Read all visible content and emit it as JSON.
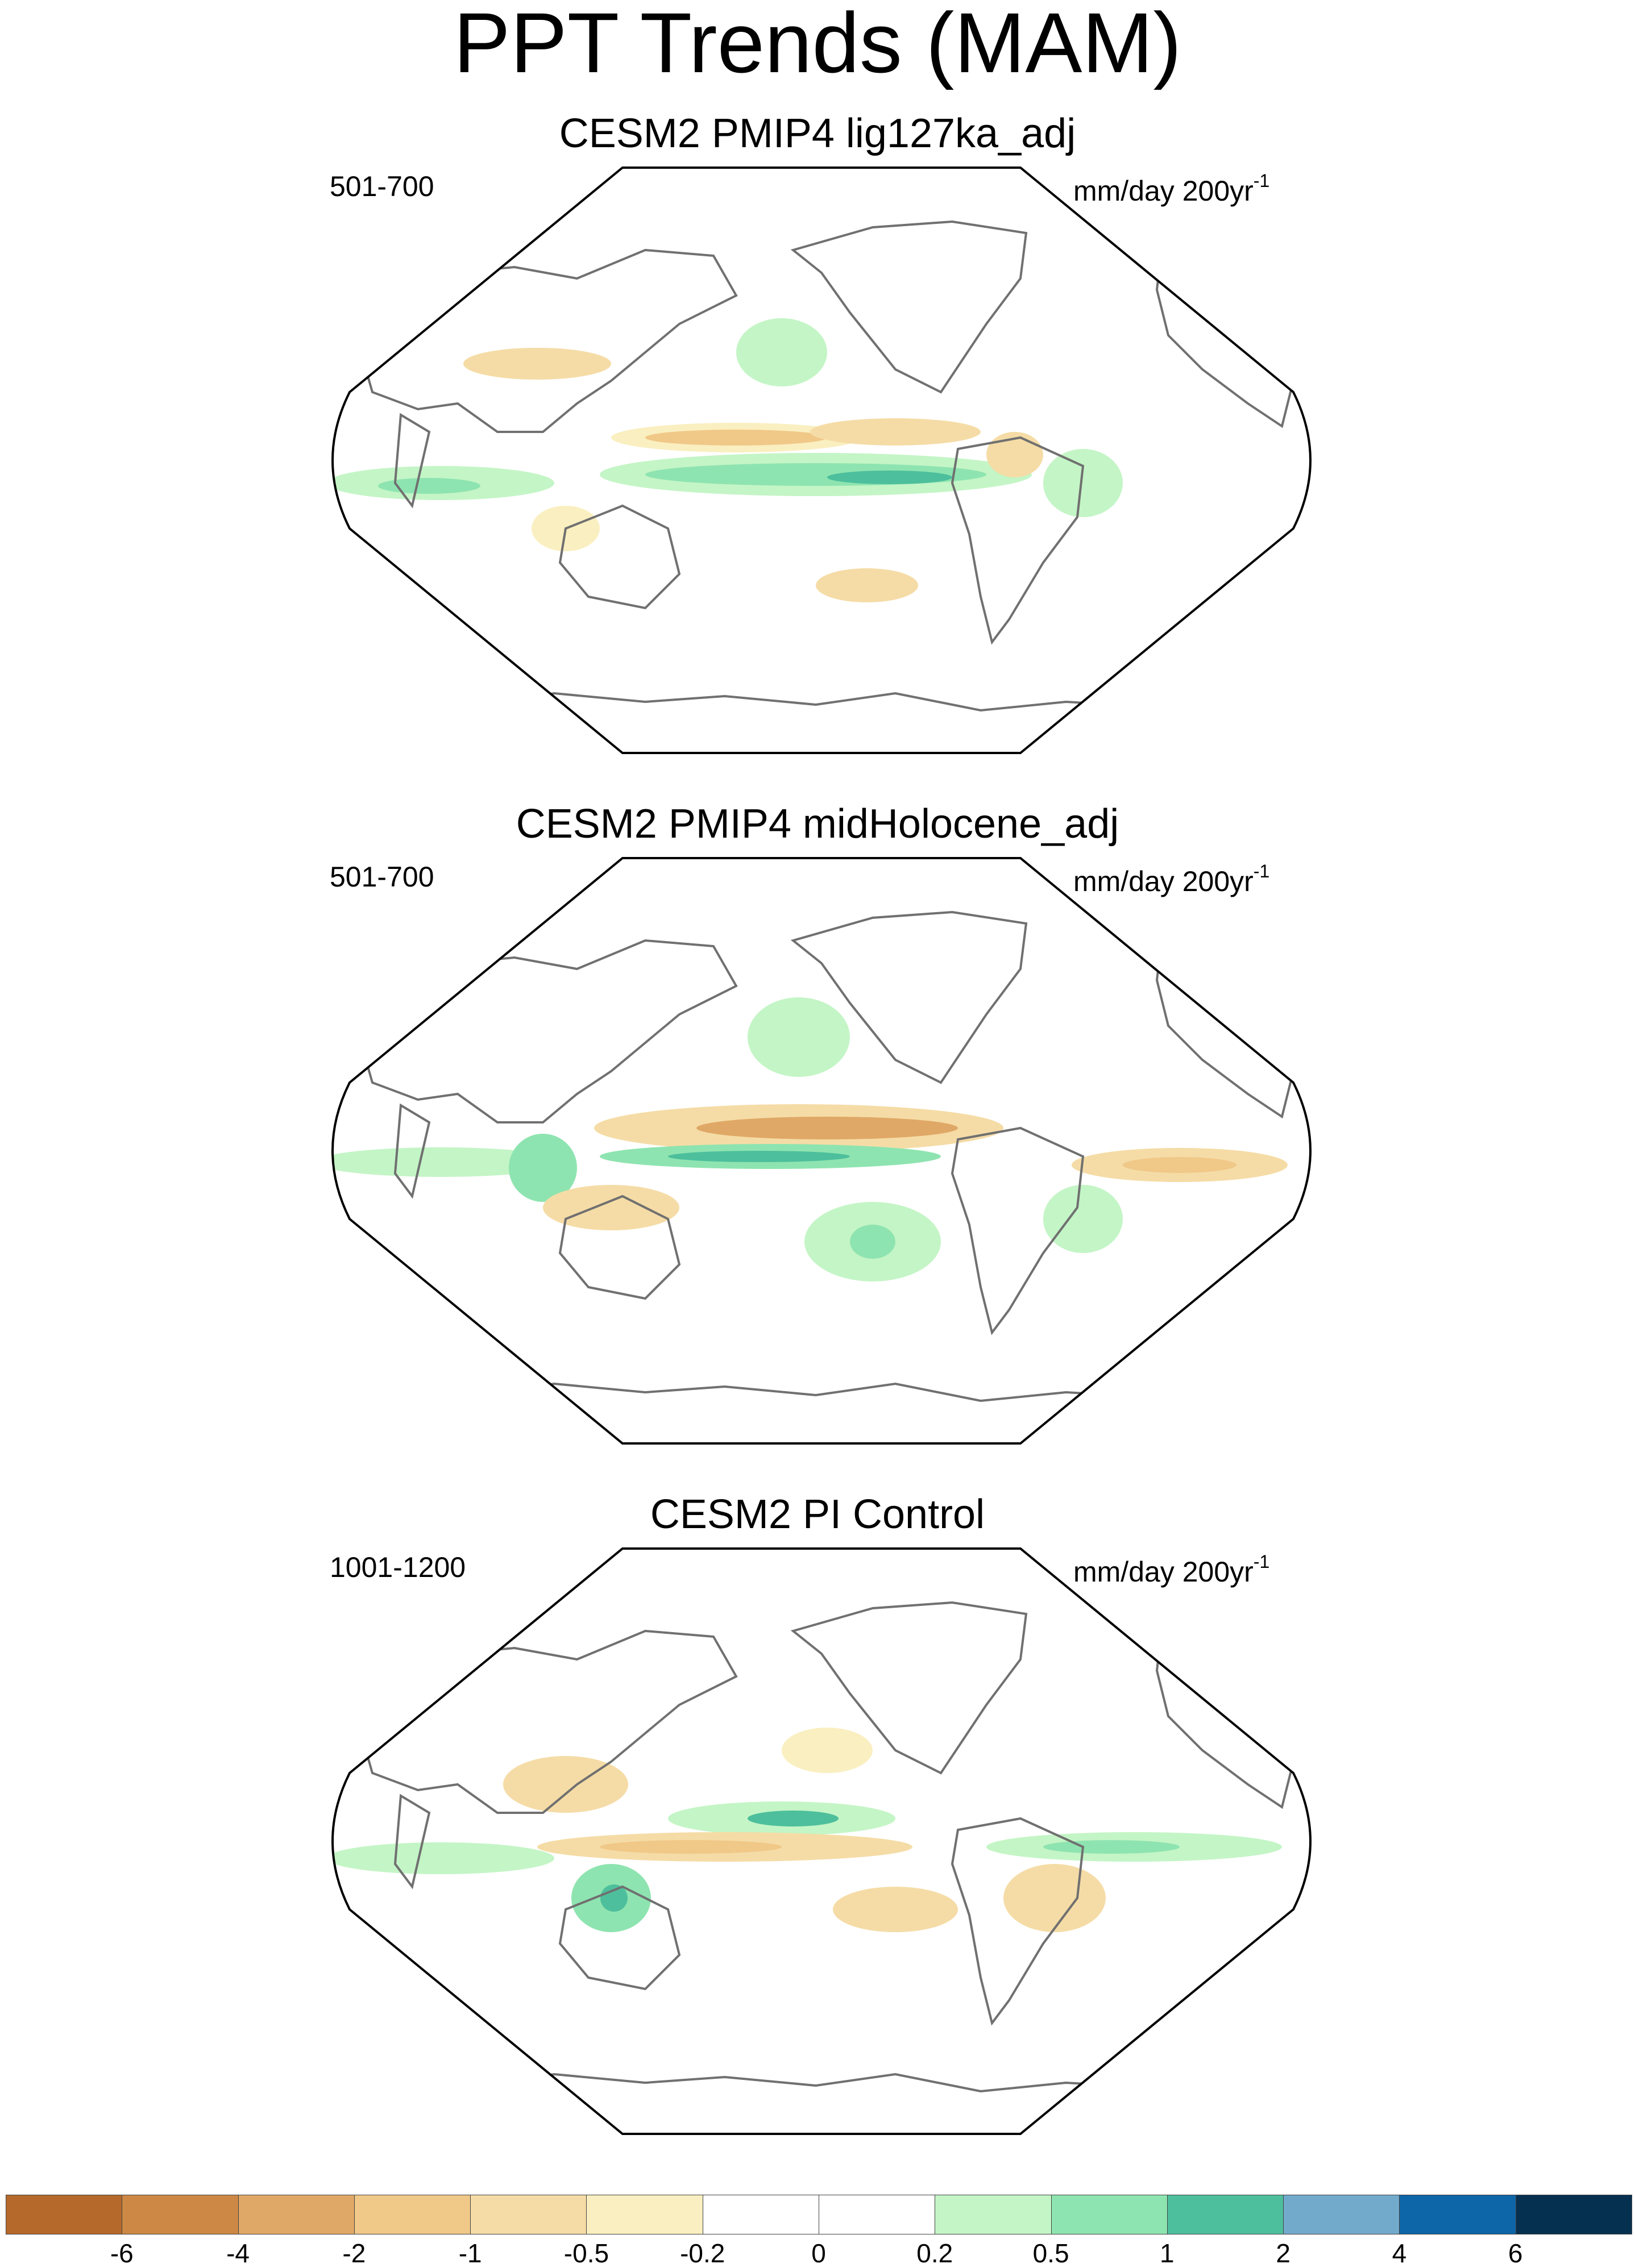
{
  "title": "PPT Trends (MAM)",
  "panels": [
    {
      "title": "CESM2 PMIP4 lig127ka_adj",
      "period": "501-700",
      "units": "mm/day 200yr",
      "units_exp": "-1"
    },
    {
      "title": "CESM2 PMIP4 midHolocene_adj",
      "period": "501-700",
      "units": "mm/day 200yr",
      "units_exp": "-1"
    },
    {
      "title": "CESM2 PI Control",
      "period": "1001-1200",
      "units": "mm/day 200yr",
      "units_exp": "-1"
    }
  ],
  "projection": "Robinson",
  "map_center_lon": 180,
  "colorbar": {
    "labels": [
      "-6",
      "-4",
      "-2",
      "-1",
      "-0.5",
      "-0.2",
      "0",
      "0.2",
      "0.5",
      "1",
      "2",
      "4",
      "6"
    ],
    "colors": [
      "#b5692a",
      "#cc8844",
      "#e0a866",
      "#f0c888",
      "#f5dca6",
      "#faefc0",
      "#ffffff",
      "#ffffff",
      "#c4f5c6",
      "#8ee4b0",
      "#4dbf9c",
      "#72aacb",
      "#0d66a7",
      "#06304f"
    ]
  },
  "land_outline_color": "#707070",
  "map_border_color": "#000000"
}
